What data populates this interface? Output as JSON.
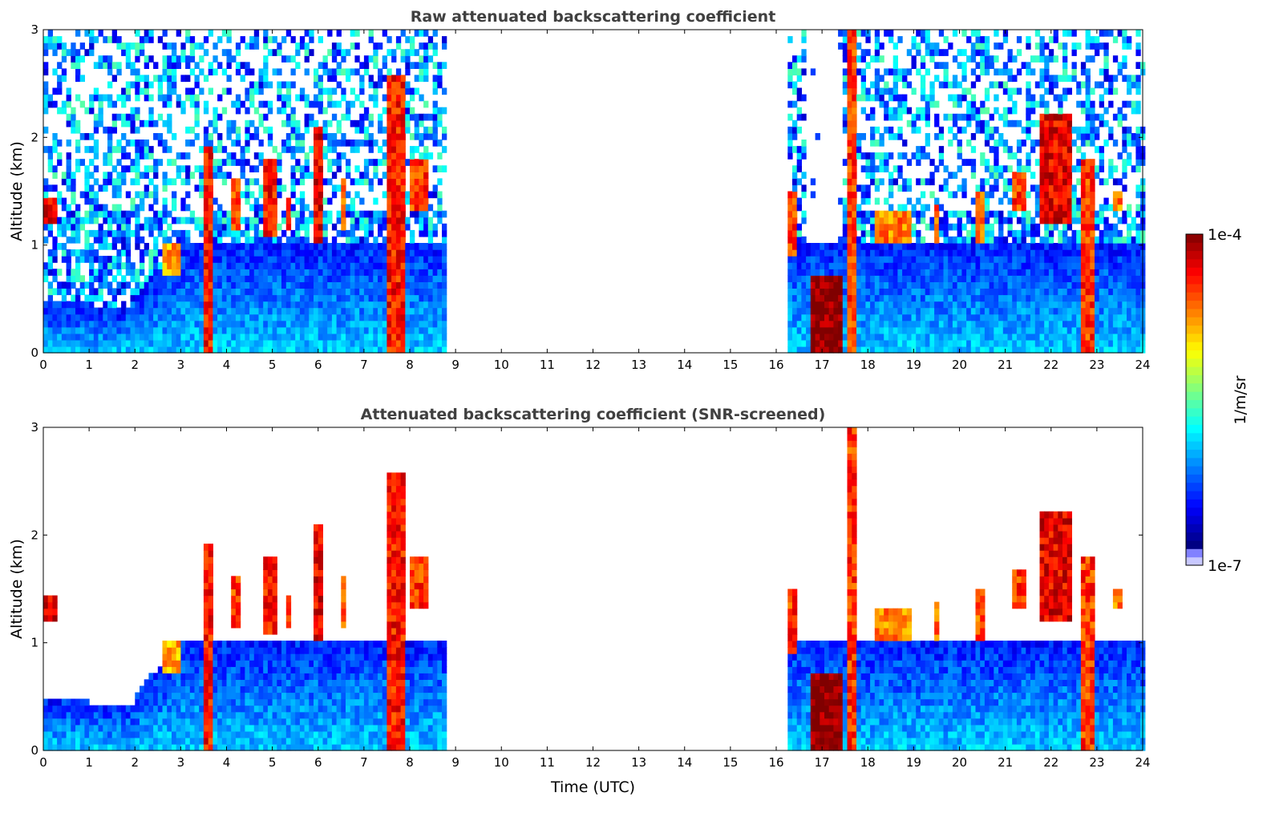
{
  "chart_data": [
    {
      "type": "heatmap",
      "title": "Raw attenuated backscattering coefficient",
      "xlabel": "",
      "ylabel": "Altitude (km)",
      "xlim": [
        0,
        24
      ],
      "ylim": [
        0,
        3
      ],
      "xticks": [
        "0",
        "1",
        "2",
        "3",
        "4",
        "5",
        "6",
        "7",
        "8",
        "9",
        "10",
        "11",
        "12",
        "13",
        "14",
        "15",
        "16",
        "17",
        "18",
        "19",
        "20",
        "21",
        "22",
        "23",
        "24"
      ],
      "yticks": [
        "0",
        "1",
        "2",
        "3"
      ],
      "screened": false
    },
    {
      "type": "heatmap",
      "title": "Attenuated backscattering coefficient (SNR-screened)",
      "xlabel": "Time (UTC)",
      "ylabel": "Altitude (km)",
      "xlim": [
        0,
        24
      ],
      "ylim": [
        0,
        3
      ],
      "xticks": [
        "0",
        "1",
        "2",
        "3",
        "4",
        "5",
        "6",
        "7",
        "8",
        "9",
        "10",
        "11",
        "12",
        "13",
        "14",
        "15",
        "16",
        "17",
        "18",
        "19",
        "20",
        "21",
        "22",
        "23",
        "24"
      ],
      "yticks": [
        "0",
        "1",
        "2",
        "3"
      ],
      "screened": true
    }
  ],
  "data_segments_utc": [
    [
      0,
      8.75
    ],
    [
      16.25,
      24
    ]
  ],
  "cloud_features": [
    {
      "t0": 0.0,
      "t1": 0.35,
      "z0": 1.2,
      "z1": 1.45,
      "log": -4.3
    },
    {
      "t0": 2.6,
      "t1": 3.0,
      "z0": 0.75,
      "z1": 1.0,
      "log": -4.8
    },
    {
      "t0": 3.52,
      "t1": 3.68,
      "z0": 0.0,
      "z1": 1.9,
      "log": -4.4
    },
    {
      "t0": 4.1,
      "t1": 4.3,
      "z0": 1.15,
      "z1": 1.6,
      "log": -4.5
    },
    {
      "t0": 4.8,
      "t1": 5.05,
      "z0": 1.1,
      "z1": 1.8,
      "log": -4.4
    },
    {
      "t0": 5.25,
      "t1": 5.4,
      "z0": 1.15,
      "z1": 1.45,
      "log": -4.5
    },
    {
      "t0": 5.85,
      "t1": 6.05,
      "z0": 1.0,
      "z1": 2.1,
      "log": -4.3
    },
    {
      "t0": 6.45,
      "t1": 6.6,
      "z0": 1.15,
      "z1": 1.6,
      "log": -4.6
    },
    {
      "t0": 7.45,
      "t1": 7.85,
      "z0": 0.0,
      "z1": 2.6,
      "log": -4.4
    },
    {
      "t0": 8.0,
      "t1": 8.4,
      "z0": 1.3,
      "z1": 1.8,
      "log": -4.5
    },
    {
      "t0": 16.3,
      "t1": 16.5,
      "z0": 0.9,
      "z1": 1.5,
      "log": -4.5
    },
    {
      "t0": 16.8,
      "t1": 17.5,
      "z0": 0.0,
      "z1": 0.7,
      "log": -4.0
    },
    {
      "t0": 17.55,
      "t1": 17.75,
      "z0": 0.0,
      "z1": 3.0,
      "log": -4.5
    },
    {
      "t0": 18.2,
      "t1": 19.0,
      "z0": 1.0,
      "z1": 1.3,
      "log": -4.7
    },
    {
      "t0": 19.45,
      "t1": 19.6,
      "z0": 1.0,
      "z1": 1.4,
      "log": -4.6
    },
    {
      "t0": 20.4,
      "t1": 20.6,
      "z0": 1.0,
      "z1": 1.5,
      "log": -4.6
    },
    {
      "t0": 21.2,
      "t1": 21.5,
      "z0": 1.3,
      "z1": 1.7,
      "log": -4.5
    },
    {
      "t0": 21.8,
      "t1": 22.5,
      "z0": 1.2,
      "z1": 2.2,
      "log": -4.3
    },
    {
      "t0": 22.7,
      "t1": 22.95,
      "z0": 0.0,
      "z1": 1.8,
      "log": -4.5
    },
    {
      "t0": 23.4,
      "t1": 23.6,
      "z0": 1.3,
      "z1": 1.5,
      "log": -4.7
    }
  ],
  "colorbar": {
    "label": "1/m/sr",
    "min_label": "1e-7",
    "max_label": "1e-4",
    "scale": "log",
    "range": [
      1e-07,
      0.0001
    ],
    "colormap": "jet"
  }
}
